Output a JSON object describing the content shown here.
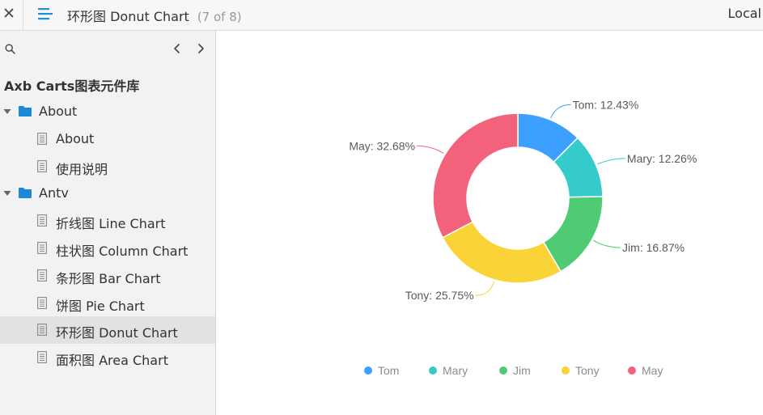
{
  "topbar": {
    "title": "环形图 Donut Chart",
    "counter": "(7 of 8)",
    "local_label": "Local"
  },
  "sidebar": {
    "project_title": "Axb Carts图表元件库",
    "tree": [
      {
        "type": "folder",
        "label": "About"
      },
      {
        "type": "page",
        "label": "About"
      },
      {
        "type": "page",
        "label": "使用说明"
      },
      {
        "type": "folder",
        "label": "Antv"
      },
      {
        "type": "page",
        "label": "折线图 Line Chart"
      },
      {
        "type": "page",
        "label": "柱状图 Column Chart"
      },
      {
        "type": "page",
        "label": "条形图 Bar Chart"
      },
      {
        "type": "page",
        "label": "饼图 Pie Chart"
      },
      {
        "type": "page",
        "label": "环形图 Donut Chart",
        "selected": true
      },
      {
        "type": "page",
        "label": "面积图 Area Chart"
      }
    ]
  },
  "colors": {
    "accent": "#1f8fd6",
    "folder": "#1e88d8",
    "selected_row": "#e2e2e2"
  },
  "chart_data": {
    "type": "pie",
    "inner_radius_ratio": 0.6,
    "categories": [
      "Tom",
      "Mary",
      "Jim",
      "Tony",
      "May"
    ],
    "values": [
      12.43,
      12.26,
      16.87,
      25.75,
      32.68
    ],
    "labels": [
      "Tom: 12.43%",
      "Mary: 12.26%",
      "Jim: 16.87%",
      "Tony: 25.75%",
      "May: 32.68%"
    ],
    "colors": [
      "#3ba0ff",
      "#36cbcb",
      "#4ecb73",
      "#fad337",
      "#f2637b"
    ],
    "legend": [
      "Tom",
      "Mary",
      "Jim",
      "Tony",
      "May"
    ],
    "legend_position": "bottom"
  }
}
